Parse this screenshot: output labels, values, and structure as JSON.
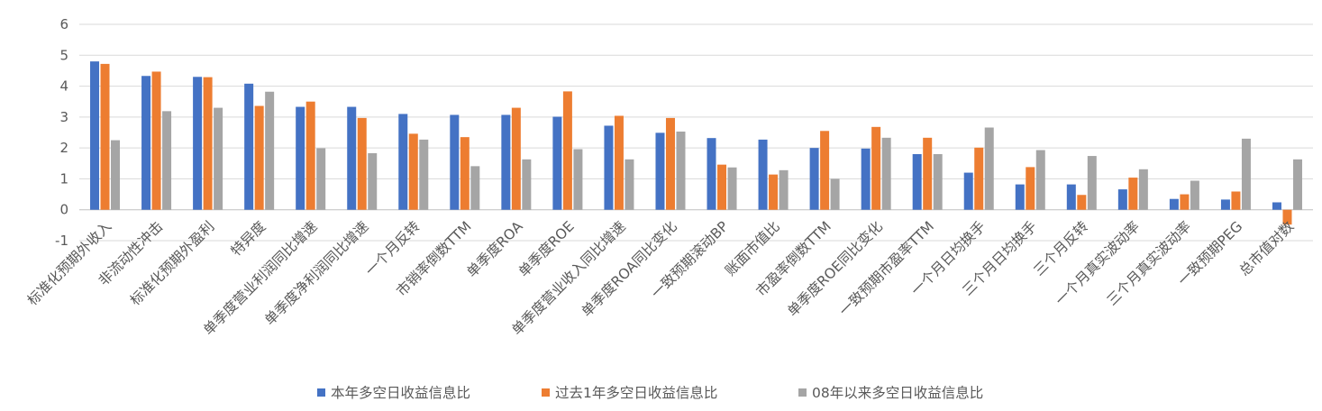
{
  "chart_data": {
    "type": "bar",
    "ylim": [
      -1,
      6
    ],
    "yticks": [
      -1,
      0,
      1,
      2,
      3,
      4,
      5,
      6
    ],
    "grid": true,
    "legend_position": "bottom",
    "categories": [
      "标准化预期外收入",
      "非流动性冲击",
      "标准化预期外盈利",
      "特异度",
      "单季度营业利润同比增速",
      "单季度净利润同比增速",
      "一个月反转",
      "市销率倒数TTM",
      "单季度ROA",
      "单季度ROE",
      "单季度营业收入同比增速",
      "单季度ROA同比变化",
      "一致预期滚动BP",
      "账面市值比",
      "市盈率倒数TTM",
      "单季度ROE同比变化",
      "一致预期市盈率TTM",
      "一个月日均换手",
      "三个月日均换手",
      "三个月反转",
      "一个月真实波动率",
      "三个月真实波动率",
      "一致预期PEG",
      "总市值对数"
    ],
    "series": [
      {
        "name": "本年多空日收益信息比",
        "color": "#4472C4",
        "values": [
          4.8,
          4.33,
          4.3,
          4.08,
          3.33,
          3.33,
          3.1,
          3.07,
          3.07,
          3.01,
          2.72,
          2.49,
          2.32,
          2.27,
          2.0,
          1.98,
          1.8,
          1.2,
          0.82,
          0.82,
          0.66,
          0.35,
          0.33,
          0.24
        ]
      },
      {
        "name": "过去1年多空日收益信息比",
        "color": "#ED7D31",
        "values": [
          4.72,
          4.47,
          4.29,
          3.36,
          3.5,
          2.97,
          2.46,
          2.35,
          3.3,
          3.83,
          3.04,
          2.97,
          1.46,
          1.14,
          2.55,
          2.68,
          2.33,
          2.01,
          1.38,
          0.48,
          1.04,
          0.5,
          0.59,
          -0.48
        ]
      },
      {
        "name": "08年以来多空日收益信息比",
        "color": "#A5A5A5",
        "values": [
          2.25,
          3.19,
          3.3,
          3.82,
          1.99,
          1.83,
          2.27,
          1.41,
          1.63,
          1.96,
          1.63,
          2.53,
          1.37,
          1.28,
          1.0,
          2.33,
          1.8,
          2.66,
          1.93,
          1.74,
          1.31,
          0.94,
          2.3,
          1.63
        ]
      }
    ]
  }
}
